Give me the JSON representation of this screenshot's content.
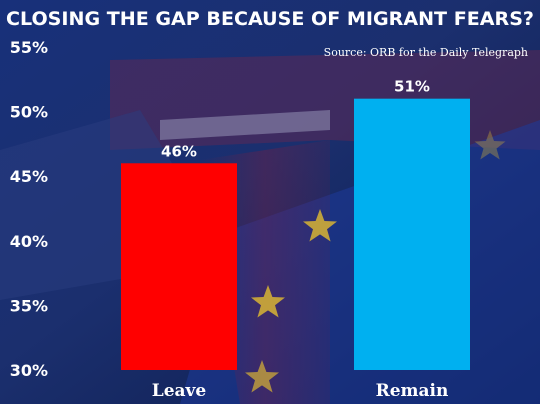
{
  "chart_data": {
    "type": "bar",
    "title": "CLOSING THE GAP BECAUSE OF MIGRANT FEARS?",
    "source": "Source: ORB for the Daily Telegraph",
    "categories": [
      "Leave",
      "Remain"
    ],
    "values": [
      46,
      51
    ],
    "value_labels": [
      "46%",
      "51%"
    ],
    "bar_colors": [
      "#ff0000",
      "#00b0f0"
    ],
    "ylim": [
      30,
      55
    ],
    "yticks": [
      55,
      50,
      45,
      40,
      35,
      30
    ],
    "ytick_labels": [
      "55%",
      "50%",
      "45%",
      "40%",
      "35%",
      "30%"
    ],
    "grid": false,
    "xlabel": "",
    "ylabel": ""
  },
  "colors": {
    "background": "#0d1f52",
    "text": "#ffffff"
  }
}
